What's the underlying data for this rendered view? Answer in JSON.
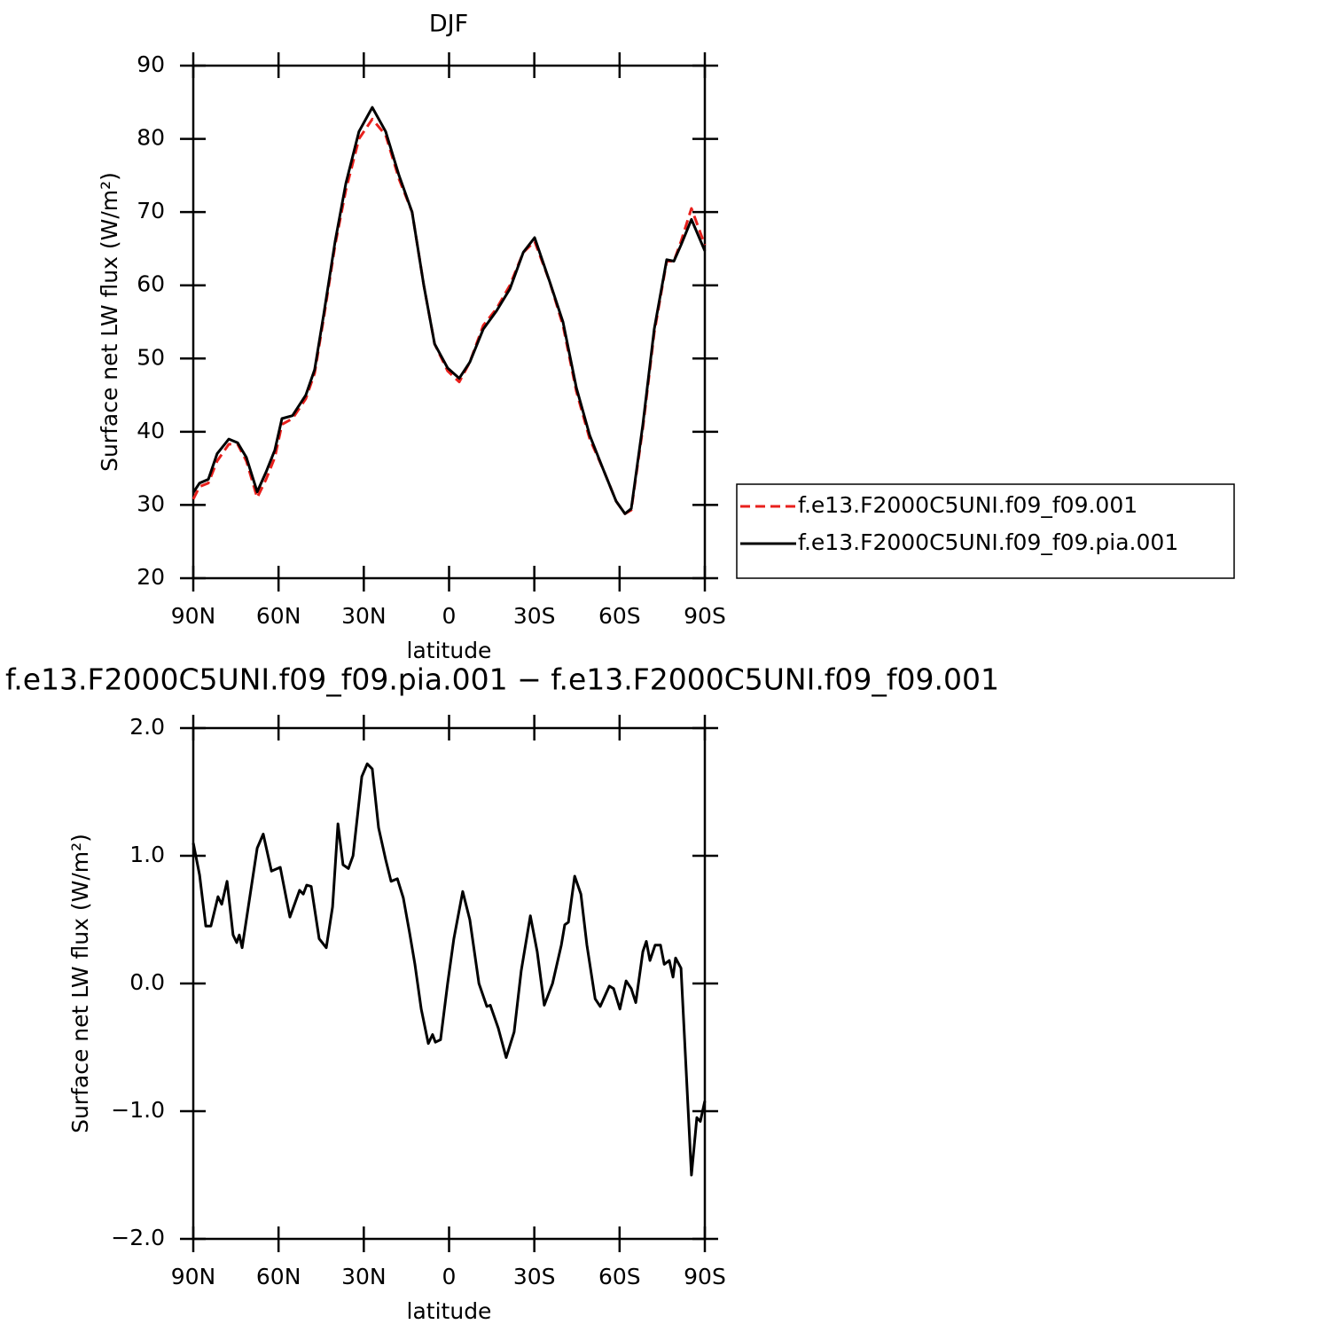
{
  "chart_data": [
    {
      "type": "line",
      "title": "DJF",
      "x_label": "latitude",
      "y_label": "Surface net LW flux (W/m²)",
      "x": [
        90,
        87.8,
        84.7,
        81.6,
        77.5,
        74.4,
        71.3,
        67.5,
        64.4,
        61.3,
        58.8,
        55.1,
        50.4,
        47.3,
        44.1,
        40.1,
        36.3,
        31.7,
        27.0,
        22.3,
        17.6,
        13.0,
        8.9,
        5.1,
        0.5,
        -3.6,
        -7.3,
        -12.0,
        -16.7,
        -21.4,
        -26.1,
        -30.1,
        -35.4,
        -40.1,
        -44.8,
        -49.5,
        -54.1,
        -58.8,
        -61.9,
        -64.1,
        -68.2,
        -72.2,
        -76.6,
        -79.1,
        -81.6,
        -85.3,
        -90
      ],
      "series": [
        {
          "name": "f.e13.F2000C5UNI.f09_f09.001",
          "color": "#e8201c",
          "linestyle": "dashed",
          "values": [
            30.8,
            32.5,
            33,
            36,
            38.3,
            38.3,
            36,
            31,
            33.5,
            36.5,
            41,
            41.8,
            44.5,
            48,
            55.5,
            65.5,
            73,
            80,
            82.7,
            80.5,
            74.5,
            70,
            60,
            52,
            48.3,
            46.8,
            49.5,
            54.5,
            56.8,
            60,
            64.5,
            66,
            60.5,
            54.5,
            45.5,
            39,
            35,
            30.5,
            28.8,
            29.3,
            40.5,
            53.5,
            63.3,
            63.3,
            66,
            70.5,
            65.5
          ]
        },
        {
          "name": "f.e13.F2000C5UNI.f09_f09.pia.001",
          "color": "#000000",
          "linestyle": "solid",
          "values": [
            31.7,
            33,
            33.5,
            37,
            39,
            38.5,
            36.5,
            31.8,
            34.5,
            37.5,
            41.8,
            42.2,
            45,
            48.5,
            56,
            66,
            73.9,
            81,
            84.3,
            81,
            75,
            70,
            60,
            52,
            48.7,
            47.3,
            49.5,
            54,
            56.5,
            59.5,
            64.5,
            66.5,
            60.5,
            55,
            46,
            39.5,
            35,
            30.5,
            28.8,
            29.5,
            41,
            54,
            63.5,
            63.3,
            65.5,
            69,
            64.7
          ]
        }
      ],
      "xlim": [
        90,
        -90
      ],
      "xticks": [
        {
          "value": 90,
          "label": "90N"
        },
        {
          "value": 60,
          "label": "60N"
        },
        {
          "value": 30,
          "label": "30N"
        },
        0,
        {
          "value": -30,
          "label": "30S"
        },
        {
          "value": -60,
          "label": "60S"
        },
        {
          "value": -90,
          "label": "90S"
        }
      ],
      "ylim": [
        20,
        90
      ],
      "yticks": [
        20,
        30,
        40,
        50,
        60,
        70,
        80,
        90
      ],
      "legend": "right"
    },
    {
      "type": "line",
      "title": "f.e13.F2000C5UNI.f09_f09.pia.001 − f.e13.F2000C5UNI.f09_f09.001",
      "x_label": "latitude",
      "y_label": "Surface net LW flux (W/m²)",
      "x": [
        90,
        87.8,
        85.6,
        83.8,
        81.3,
        80.0,
        78.1,
        76.0,
        74.7,
        73.8,
        72.8,
        71.3,
        67.5,
        65.4,
        62.5,
        59.4,
        56.0,
        52.6,
        51.3,
        50.1,
        48.5,
        45.7,
        43.2,
        41.0,
        39.1,
        37.3,
        35.4,
        33.8,
        30.7,
        28.8,
        27.0,
        24.8,
        22.3,
        20.4,
        18.2,
        16.1,
        13.9,
        12.0,
        9.8,
        7.3,
        5.8,
        4.8,
        3.0,
        0.5,
        -1.7,
        -4.8,
        -7.3,
        -10.5,
        -13.3,
        -14.5,
        -17.3,
        -20.1,
        -22.9,
        -25.4,
        -28.6,
        -31.0,
        -33.5,
        -36.4,
        -39.5,
        -40.7,
        -42.0,
        -44.2,
        -46.4,
        -48.5,
        -51.4,
        -53.2,
        -56.4,
        -57.9,
        -60.1,
        -62.3,
        -64.1,
        -65.7,
        -68.2,
        -69.4,
        -70.7,
        -72.5,
        -74.4,
        -75.7,
        -77.5,
        -78.8,
        -79.7,
        -81.6,
        -85.3,
        -87.2,
        -88.4,
        -90
      ],
      "series": [
        {
          "color": "#000000",
          "linestyle": "solid",
          "values": [
            1.1,
            0.85,
            0.45,
            0.45,
            0.68,
            0.62,
            0.8,
            0.38,
            0.32,
            0.38,
            0.28,
            0.5,
            1.06,
            1.17,
            0.88,
            0.91,
            0.52,
            0.73,
            0.7,
            0.77,
            0.76,
            0.35,
            0.28,
            0.6,
            1.25,
            0.93,
            0.9,
            1.0,
            1.62,
            1.72,
            1.68,
            1.22,
            0.97,
            0.8,
            0.82,
            0.67,
            0.4,
            0.15,
            -0.2,
            -0.47,
            -0.4,
            -0.46,
            -0.44,
            0.0,
            0.35,
            0.72,
            0.5,
            0.0,
            -0.18,
            -0.17,
            -0.35,
            -0.58,
            -0.38,
            0.1,
            0.53,
            0.25,
            -0.17,
            0.0,
            0.3,
            0.46,
            0.48,
            0.84,
            0.7,
            0.3,
            -0.12,
            -0.18,
            -0.02,
            -0.04,
            -0.2,
            0.02,
            -0.04,
            -0.15,
            0.25,
            0.33,
            0.18,
            0.3,
            0.3,
            0.15,
            0.18,
            0.05,
            0.2,
            0.12,
            -1.5,
            -1.05,
            -1.08,
            -0.92
          ]
        }
      ],
      "xlim": [
        90,
        -90
      ],
      "xticks": [
        {
          "value": 90,
          "label": "90N"
        },
        {
          "value": 60,
          "label": "60N"
        },
        {
          "value": 30,
          "label": "30N"
        },
        0,
        {
          "value": -30,
          "label": "30S"
        },
        {
          "value": -60,
          "label": "60S"
        },
        {
          "value": -90,
          "label": "90S"
        }
      ],
      "ylim": [
        -2,
        2
      ],
      "yticks": [
        {
          "value": -2,
          "label": "−2.0"
        },
        {
          "value": -1,
          "label": "−1.0"
        },
        {
          "value": 0,
          "label": "0.0"
        },
        {
          "value": 1,
          "label": "1.0"
        },
        {
          "value": 2,
          "label": "2.0"
        }
      ]
    }
  ]
}
